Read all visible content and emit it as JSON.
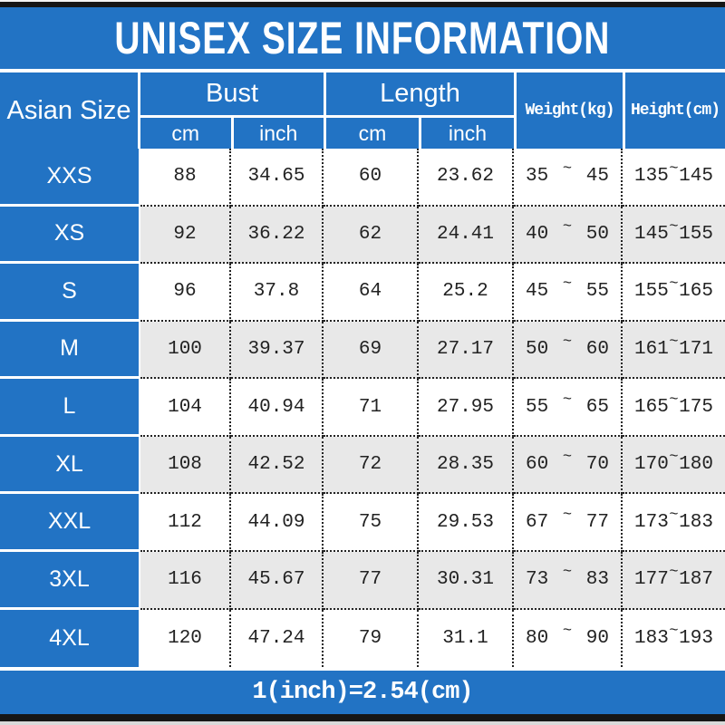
{
  "title": "UNISEX SIZE INFORMATION",
  "footer_note": "1(inch)=2.54(cm)",
  "colors": {
    "blue": "#2273c4",
    "row_alt": "#e8e8e8",
    "bar_black": "#161616"
  },
  "table": {
    "size_column_header": "Asian Size",
    "groups": [
      {
        "label": "Bust",
        "sub": [
          "cm",
          "inch"
        ]
      },
      {
        "label": "Length",
        "sub": [
          "cm",
          "inch"
        ]
      }
    ],
    "single_headers": [
      "Weight(kg)",
      "Height(cm)"
    ],
    "tilde": "~",
    "rows": [
      {
        "size": "XXS",
        "bust_cm": "88",
        "bust_inch": "34.65",
        "length_cm": "60",
        "length_inch": "23.62",
        "weight_min": "35",
        "weight_max": "45",
        "height_min": "135",
        "height_max": "145"
      },
      {
        "size": "XS",
        "bust_cm": "92",
        "bust_inch": "36.22",
        "length_cm": "62",
        "length_inch": "24.41",
        "weight_min": "40",
        "weight_max": "50",
        "height_min": "145",
        "height_max": "155"
      },
      {
        "size": "S",
        "bust_cm": "96",
        "bust_inch": "37.8",
        "length_cm": "64",
        "length_inch": "25.2",
        "weight_min": "45",
        "weight_max": "55",
        "height_min": "155",
        "height_max": "165"
      },
      {
        "size": "M",
        "bust_cm": "100",
        "bust_inch": "39.37",
        "length_cm": "69",
        "length_inch": "27.17",
        "weight_min": "50",
        "weight_max": "60",
        "height_min": "161",
        "height_max": "171"
      },
      {
        "size": "L",
        "bust_cm": "104",
        "bust_inch": "40.94",
        "length_cm": "71",
        "length_inch": "27.95",
        "weight_min": "55",
        "weight_max": "65",
        "height_min": "165",
        "height_max": "175"
      },
      {
        "size": "XL",
        "bust_cm": "108",
        "bust_inch": "42.52",
        "length_cm": "72",
        "length_inch": "28.35",
        "weight_min": "60",
        "weight_max": "70",
        "height_min": "170",
        "height_max": "180"
      },
      {
        "size": "XXL",
        "bust_cm": "112",
        "bust_inch": "44.09",
        "length_cm": "75",
        "length_inch": "29.53",
        "weight_min": "67",
        "weight_max": "77",
        "height_min": "173",
        "height_max": "183"
      },
      {
        "size": "3XL",
        "bust_cm": "116",
        "bust_inch": "45.67",
        "length_cm": "77",
        "length_inch": "30.31",
        "weight_min": "73",
        "weight_max": "83",
        "height_min": "177",
        "height_max": "187"
      },
      {
        "size": "4XL",
        "bust_cm": "120",
        "bust_inch": "47.24",
        "length_cm": "79",
        "length_inch": "31.1",
        "weight_min": "80",
        "weight_max": "90",
        "height_min": "183",
        "height_max": "193"
      }
    ]
  }
}
